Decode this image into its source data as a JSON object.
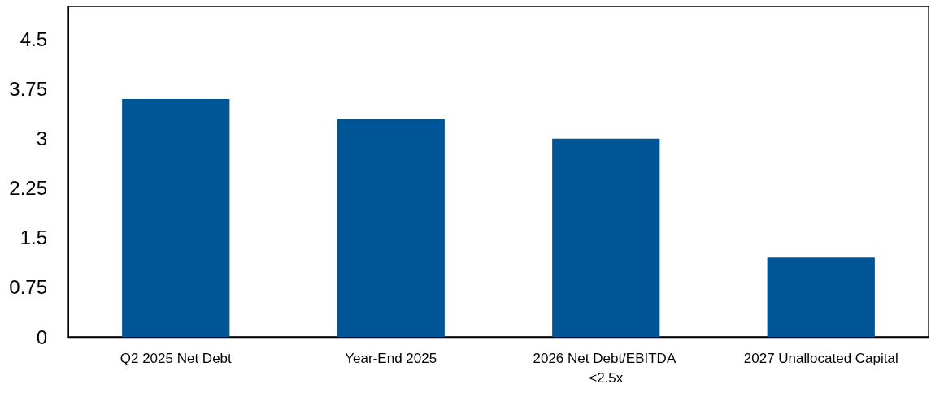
{
  "chart_data": {
    "type": "bar",
    "categories": [
      "Q2 2025 Net Debt",
      "Year-End 2025",
      "2026 Net Debt/EBITDA <2.5x",
      "2027 Unallocated Capital"
    ],
    "values": [
      3.6,
      3.3,
      3.0,
      1.2
    ],
    "color": "#005596",
    "ylim": [
      0,
      5
    ],
    "yticks": [
      0,
      0.75,
      1.5,
      2.25,
      3,
      3.75,
      4.5
    ],
    "grid": false
  }
}
